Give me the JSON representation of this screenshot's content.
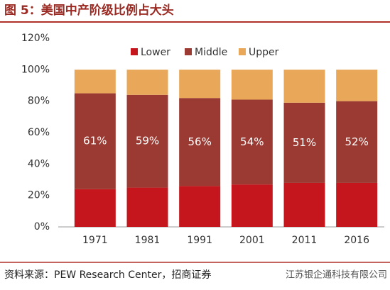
{
  "chart_data": {
    "type": "stacked_bar",
    "title": "图 5：美国中产阶级比例占大头",
    "categories": [
      "1971",
      "1981",
      "1991",
      "2001",
      "2011",
      "2016"
    ],
    "series": [
      {
        "name": "Lower",
        "color": "#c4161c",
        "values": [
          24,
          25,
          26,
          27,
          28,
          28
        ]
      },
      {
        "name": "Middle",
        "color": "#9b3a32",
        "values": [
          61,
          59,
          56,
          54,
          51,
          52
        ],
        "value_labels": [
          "61%",
          "59%",
          "56%",
          "54%",
          "51%",
          "52%"
        ]
      },
      {
        "name": "Upper",
        "color": "#e9a75a",
        "values": [
          15,
          16,
          18,
          19,
          21,
          20
        ]
      }
    ],
    "ylim": [
      0,
      120
    ],
    "yticks": [
      {
        "value": 0,
        "label": "0%"
      },
      {
        "value": 20,
        "label": "20%"
      },
      {
        "value": 40,
        "label": "40%"
      },
      {
        "value": 60,
        "label": "60%"
      },
      {
        "value": 80,
        "label": "80%"
      },
      {
        "value": 100,
        "label": "100%"
      },
      {
        "value": 120,
        "label": "120%"
      }
    ],
    "legend": "top",
    "source": "资料来源：PEW Research Center，招商证券",
    "watermark": "江苏银企通科技有限公司"
  }
}
